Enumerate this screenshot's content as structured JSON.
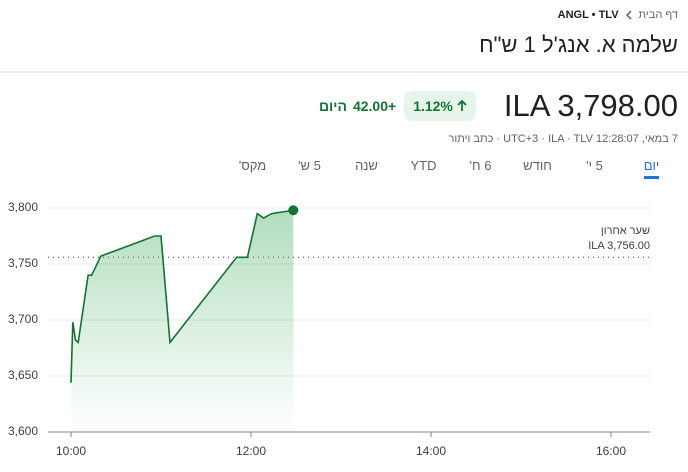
{
  "breadcrumb": {
    "home": "דף הבית",
    "symbol": "ANGL • TLV"
  },
  "title": "שלמה א. אנג'ל 1 ש\"ח",
  "quote": {
    "price": "ILA 3,798.00",
    "change_percent": "1.12%",
    "change": "+42.00",
    "period": "היום",
    "details": "7 במאי, 12:28:07 UTC+3 · ILA · TLV · ",
    "disclaimer": "כתב ויתור"
  },
  "tabs": [
    "יום",
    "5 י'",
    "חודש",
    "6 ח'",
    "YTD",
    "שנה",
    "5 ש'",
    "מקס'"
  ],
  "chart_data": {
    "type": "line",
    "color": "#137333",
    "x": [
      10.0,
      10.02,
      10.05,
      10.08,
      10.19,
      10.23,
      10.33,
      10.93,
      11.0,
      11.1,
      11.84,
      11.96,
      12.07,
      12.14,
      12.23,
      12.47
    ],
    "values": [
      3644,
      3698,
      3682,
      3680,
      3740,
      3740,
      3757,
      3775,
      3775,
      3680,
      3756,
      3756,
      3795,
      3791,
      3795,
      3798
    ],
    "xlim": [
      10,
      16
    ],
    "xticks": [
      {
        "value": 10,
        "label": "10:00"
      },
      {
        "value": 12,
        "label": "12:00"
      },
      {
        "value": 14,
        "label": "14:00"
      },
      {
        "value": 16,
        "label": "16:00"
      }
    ],
    "ylim": [
      3600,
      3800
    ],
    "yticks": [
      {
        "value": 3600,
        "label": "3,600"
      },
      {
        "value": 3650,
        "label": "3,650"
      },
      {
        "value": 3700,
        "label": "3,700"
      },
      {
        "value": 3750,
        "label": "3,750"
      },
      {
        "value": 3800,
        "label": "3,800"
      }
    ],
    "grid": true,
    "reference_line": {
      "title": "שער אחרון",
      "value": 3756,
      "label": "ILA 3,756.00"
    }
  }
}
